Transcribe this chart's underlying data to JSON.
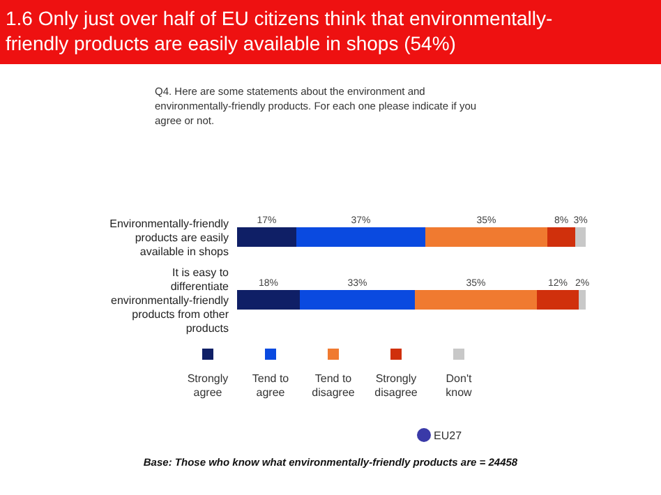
{
  "chart_data": {
    "type": "bar",
    "orientation": "horizontal",
    "stacked": true,
    "legend": "bottom",
    "title": "1.6 Only just over half of EU citizens think that environmentally-friendly products are easily available in shops (54%)",
    "subtitle": "Q4. Here are some statements about the environment and environmentally-friendly products. For each one please indicate if you agree or not.",
    "categories": [
      "Environmentally-friendly products are easily available in shops",
      "It is easy to differentiate environmentally-friendly products from other products"
    ],
    "series": [
      {
        "name": "Strongly agree",
        "color": "#0f1f66",
        "values": [
          17,
          18
        ],
        "value_labels": [
          "17%",
          "18%"
        ]
      },
      {
        "name": "Tend to agree",
        "color": "#0a4ae0",
        "values": [
          37,
          33
        ],
        "value_labels": [
          "37%",
          "33%"
        ]
      },
      {
        "name": "Tend to disagree",
        "color": "#f07a30",
        "values": [
          35,
          35
        ],
        "value_labels": [
          "35%",
          "35%"
        ]
      },
      {
        "name": "Strongly disagree",
        "color": "#d0300c",
        "values": [
          8,
          12
        ],
        "value_labels": [
          "8%",
          "12%"
        ]
      },
      {
        "name": "Don't know",
        "color": "#c8c8c8",
        "values": [
          3,
          2
        ],
        "value_labels": [
          "3%",
          "2%"
        ]
      }
    ],
    "annotations": [
      "EU27",
      "Base: Those who know what environmentally-friendly products are = 24458"
    ]
  }
}
